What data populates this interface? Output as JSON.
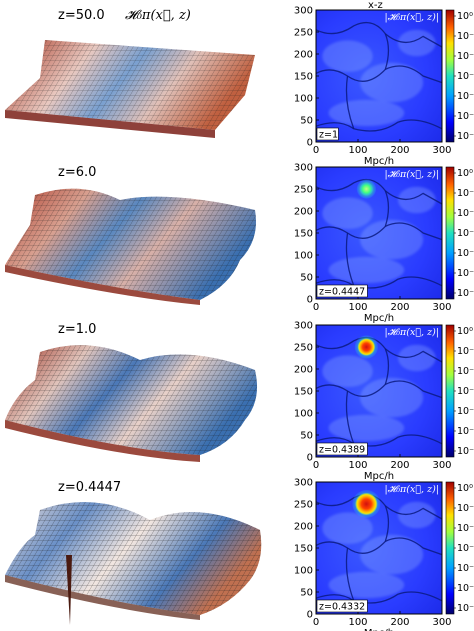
{
  "figure": {
    "func_label": "𝓗₀π(x⃗, z)",
    "panel_title": "x-z",
    "legend_label": "|𝓗₀π(x⃗, z)|",
    "x_axis_label": "Mpc/h",
    "left_panels": [
      {
        "label": "z=50.0"
      },
      {
        "label": "z=6.0"
      },
      {
        "label": "z=1.0"
      },
      {
        "label": "z=0.4447"
      }
    ],
    "right_panels": [
      {
        "inset": "z=1",
        "blob_size": 0
      },
      {
        "inset": "z=0.4447",
        "blob_size": 0.45
      },
      {
        "inset": "z=0.4389",
        "blob_size": 0.7
      },
      {
        "inset": "z=0.4332",
        "blob_size": 1.0
      }
    ],
    "y_ticks": [
      "300",
      "250",
      "200",
      "150",
      "100",
      "50",
      "0"
    ],
    "x_ticks": [
      "0",
      "100",
      "200",
      "300"
    ],
    "colorbar_ticks": [
      "10⁰",
      "10⁻¹",
      "10⁻²",
      "10⁻³",
      "10⁻⁴",
      "10⁻⁵",
      "10⁻⁶"
    ],
    "colors": {
      "field_blue": "#2a3cff",
      "field_light": "#8aa8ff",
      "filament": "#0a1a80",
      "blob_outer": "#ffe000",
      "blob_mid": "#ff7a00",
      "blob_core": "#d01010",
      "surface_red": "#b03020",
      "surface_blue": "#3a6fb0"
    }
  }
}
